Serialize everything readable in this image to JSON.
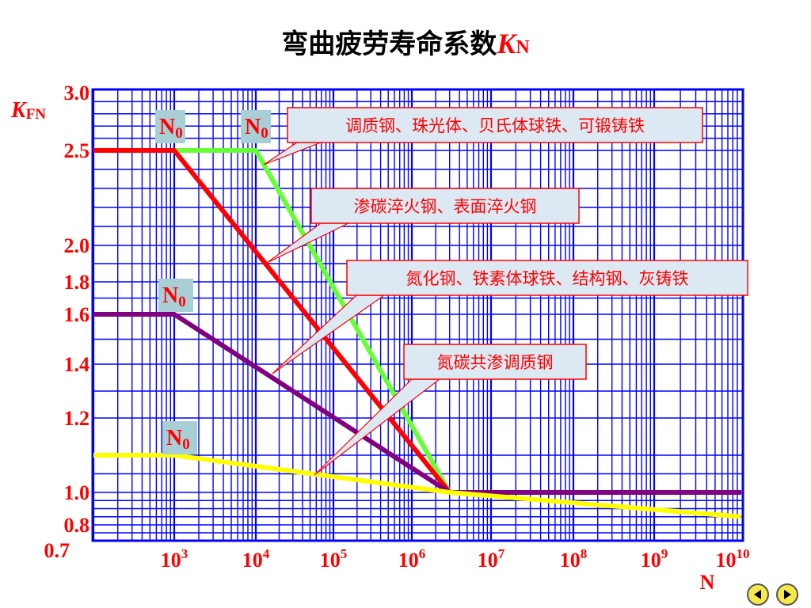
{
  "title": {
    "text": "弯曲疲劳寿命系数",
    "k": "K",
    "sub": "N"
  },
  "chart_data": {
    "type": "line",
    "title": "弯曲疲劳寿命系数K_N",
    "ylabel_main": "K",
    "ylabel_sub": "FN",
    "xlabel": "N",
    "x_scale": "log",
    "y_scale": "log",
    "ylim": [
      0.7,
      3.0
    ],
    "y_ticks": [
      "3.0",
      "2.5",
      "2.0",
      "1.8",
      "1.6",
      "1.4",
      "1.2",
      "1.0",
      "0.8",
      "0.7"
    ],
    "x_ticks": [
      {
        "base": "10",
        "exp": "3"
      },
      {
        "base": "10",
        "exp": "4"
      },
      {
        "base": "10",
        "exp": "5"
      },
      {
        "base": "10",
        "exp": "6"
      },
      {
        "base": "10",
        "exp": "7"
      },
      {
        "base": "10",
        "exp": "8"
      },
      {
        "base": "10",
        "exp": "9"
      },
      {
        "base": "10",
        "exp": "10"
      }
    ],
    "grid": true,
    "series": [
      {
        "color": "#66ff33",
        "points": [
          [
            100,
            2.5
          ],
          [
            10000,
            2.5
          ],
          [
            3000000,
            1.0
          ],
          [
            10000000000,
            1.0
          ]
        ]
      },
      {
        "color": "#ff0000",
        "points": [
          [
            100,
            2.5
          ],
          [
            1000,
            2.5
          ],
          [
            3000000,
            1.0
          ],
          [
            10000000000,
            1.0
          ]
        ]
      },
      {
        "color": "#800080",
        "points": [
          [
            100,
            1.6
          ],
          [
            1000,
            1.6
          ],
          [
            3000000,
            1.0
          ],
          [
            10000000000,
            1.0
          ]
        ]
      },
      {
        "color": "#ffff00",
        "points": [
          [
            100,
            1.1
          ],
          [
            1000,
            1.1
          ],
          [
            3000000,
            1.0
          ],
          [
            10000000000,
            0.85
          ]
        ]
      }
    ],
    "n0_labels": [
      {
        "base": "N",
        "sub": "0"
      },
      {
        "base": "N",
        "sub": "0"
      },
      {
        "base": "N",
        "sub": "0"
      },
      {
        "base": "N",
        "sub": "0"
      }
    ],
    "annotations": [
      "调质钢、珠光体、贝氏体球铁、可锻铸铁",
      "渗碳淬火钢、表面淬火钢",
      "氮化钢、铁素体球铁、结构钢、灰铸铁",
      "氮碳共渗调质钢"
    ]
  },
  "nav": {
    "prev": "previous",
    "next": "next"
  }
}
